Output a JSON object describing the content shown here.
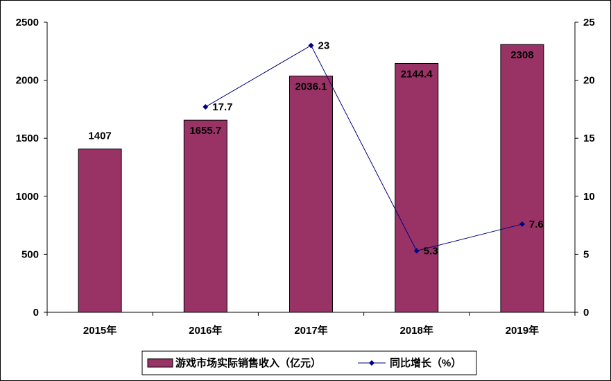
{
  "chart_data": {
    "type": "bar",
    "categories": [
      "2015年",
      "2016年",
      "2017年",
      "2018年",
      "2019年"
    ],
    "series": [
      {
        "name": "游戏市场实际销售收入（亿元）",
        "type": "bar",
        "axis": "left",
        "values": [
          1407,
          1655.7,
          2036.1,
          2144.4,
          2308
        ],
        "labels": [
          "1407",
          "1655.7",
          "2036.1",
          "2144.4",
          "2308"
        ],
        "color": "#993366"
      },
      {
        "name": "同比增长（%）",
        "type": "line",
        "axis": "right",
        "values": [
          null,
          17.7,
          23,
          5.3,
          7.6
        ],
        "labels": [
          "",
          "17.7",
          "23",
          "5.3",
          "7.6"
        ],
        "color": "#000080"
      }
    ],
    "y_left": {
      "min": 0,
      "max": 2500,
      "ticks": [
        "0",
        "500",
        "1000",
        "1500",
        "2000",
        "2500"
      ]
    },
    "y_right": {
      "min": 0,
      "max": 25,
      "ticks": [
        "0",
        "5",
        "10",
        "15",
        "20",
        "25"
      ]
    },
    "grid": false,
    "legend": "bottom"
  }
}
